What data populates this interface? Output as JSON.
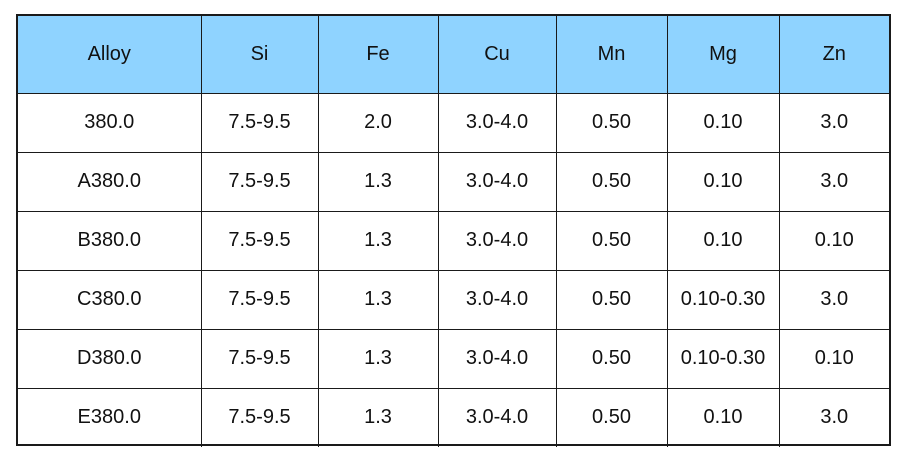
{
  "table": {
    "header_color": "#8fd3ff",
    "columns": [
      "Alloy",
      "Si",
      "Fe",
      "Cu",
      "Mn",
      "Mg",
      "Zn"
    ],
    "rows": [
      [
        "380.0",
        "7.5-9.5",
        "2.0",
        "3.0-4.0",
        "0.50",
        "0.10",
        "3.0"
      ],
      [
        "A380.0",
        "7.5-9.5",
        "1.3",
        "3.0-4.0",
        "0.50",
        "0.10",
        "3.0"
      ],
      [
        "B380.0",
        "7.5-9.5",
        "1.3",
        "3.0-4.0",
        "0.50",
        "0.10",
        "0.10"
      ],
      [
        "C380.0",
        "7.5-9.5",
        "1.3",
        "3.0-4.0",
        "0.50",
        "0.10-0.30",
        "3.0"
      ],
      [
        "D380.0",
        "7.5-9.5",
        "1.3",
        "3.0-4.0",
        "0.50",
        "0.10-0.30",
        "0.10"
      ],
      [
        "E380.0",
        "7.5-9.5",
        "1.3",
        "3.0-4.0",
        "0.50",
        "0.10",
        "3.0"
      ]
    ]
  }
}
